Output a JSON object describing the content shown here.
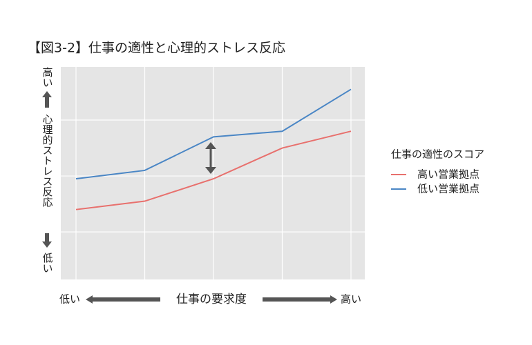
{
  "chart_data": {
    "type": "line",
    "title": "【図3-2】仕事の適性と心理的ストレス反応",
    "xlabel": "仕事の要求度",
    "xlabel_low": "低い",
    "xlabel_high": "高い",
    "ylabel": "心理的ストレス反応",
    "ylabel_high": "高い",
    "ylabel_low": "低い",
    "categories": [
      null,
      null,
      null,
      null,
      null
    ],
    "series": [
      {
        "name": "高い営業拠点",
        "color": "#e8706d",
        "values": [
          1.4,
          1.55,
          1.95,
          2.5,
          2.8
        ]
      },
      {
        "name": "低い営業拠点",
        "color": "#4a86c5",
        "values": [
          1.95,
          2.1,
          2.7,
          2.8,
          3.55
        ]
      }
    ],
    "legend_title": "仕事の適性のスコア",
    "legend": "right",
    "ylim": [
      0.15,
      3.95
    ],
    "yticks": [
      1,
      2,
      3
    ],
    "grid": true
  }
}
